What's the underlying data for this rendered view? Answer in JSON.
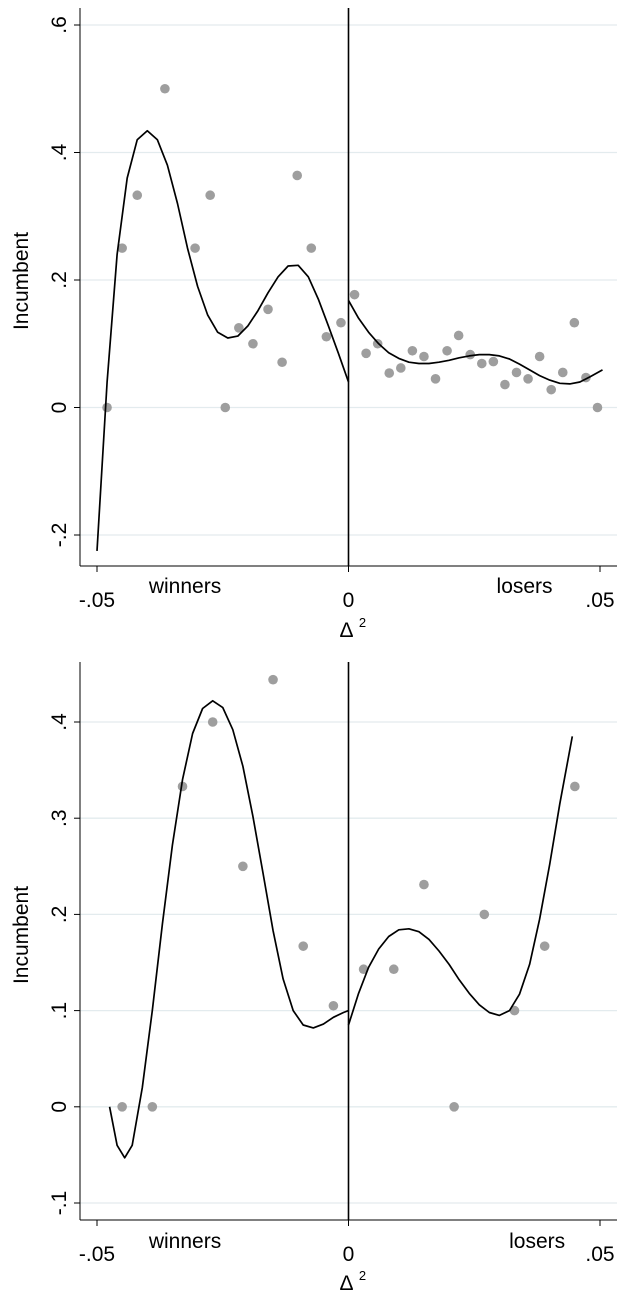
{
  "chart_data": [
    {
      "type": "scatter",
      "xlabel": "Δ",
      "xlabel_sup": "2",
      "ylabel": "Incumbent",
      "xlim": [
        -0.05,
        0.05
      ],
      "ylim": [
        -0.2,
        0.6
      ],
      "xticks": [
        {
          "value": -0.05,
          "label": "-.05"
        },
        {
          "value": 0,
          "label": "0"
        },
        {
          "value": 0.05,
          "label": ".05"
        }
      ],
      "yticks": [
        {
          "value": -0.2,
          "label": "-.2"
        },
        {
          "value": 0,
          "label": "0"
        },
        {
          "value": 0.2,
          "label": ".2"
        },
        {
          "value": 0.4,
          "label": ".4"
        },
        {
          "value": 0.6,
          "label": ".6"
        }
      ],
      "annotations": [
        {
          "text": "winners",
          "x": -0.0325
        },
        {
          "text": "losers",
          "x": 0.035
        }
      ],
      "cutoff": 0,
      "grid": true,
      "points": [
        [
          -0.048,
          0.0
        ],
        [
          -0.045,
          0.25
        ],
        [
          -0.042,
          0.333
        ],
        [
          -0.0365,
          0.5
        ],
        [
          -0.0305,
          0.25
        ],
        [
          -0.0275,
          0.333
        ],
        [
          -0.0245,
          0.0
        ],
        [
          -0.0218,
          0.125
        ],
        [
          -0.019,
          0.1
        ],
        [
          -0.016,
          0.154
        ],
        [
          -0.0132,
          0.071
        ],
        [
          -0.0102,
          0.364
        ],
        [
          -0.0074,
          0.25
        ],
        [
          -0.0044,
          0.111
        ],
        [
          -0.0015,
          0.133
        ],
        [
          0.0012,
          0.177
        ],
        [
          0.0035,
          0.085
        ],
        [
          0.0058,
          0.1
        ],
        [
          0.0081,
          0.054
        ],
        [
          0.0104,
          0.062
        ],
        [
          0.0127,
          0.089
        ],
        [
          0.015,
          0.08
        ],
        [
          0.0173,
          0.045
        ],
        [
          0.0196,
          0.089
        ],
        [
          0.0219,
          0.113
        ],
        [
          0.0242,
          0.083
        ],
        [
          0.0265,
          0.069
        ],
        [
          0.0288,
          0.072
        ],
        [
          0.0311,
          0.036
        ],
        [
          0.0334,
          0.055
        ],
        [
          0.0357,
          0.045
        ],
        [
          0.038,
          0.08
        ],
        [
          0.0403,
          0.028
        ],
        [
          0.0426,
          0.055
        ],
        [
          0.0449,
          0.133
        ],
        [
          0.0472,
          0.047
        ],
        [
          0.0495,
          0.0
        ]
      ],
      "fit_left": [
        [
          -0.05,
          -0.225
        ],
        [
          -0.048,
          0.04
        ],
        [
          -0.046,
          0.24
        ],
        [
          -0.044,
          0.36
        ],
        [
          -0.042,
          0.42
        ],
        [
          -0.04,
          0.434
        ],
        [
          -0.038,
          0.42
        ],
        [
          -0.036,
          0.38
        ],
        [
          -0.034,
          0.32
        ],
        [
          -0.032,
          0.25
        ],
        [
          -0.03,
          0.19
        ],
        [
          -0.028,
          0.145
        ],
        [
          -0.026,
          0.118
        ],
        [
          -0.024,
          0.109
        ],
        [
          -0.022,
          0.112
        ],
        [
          -0.02,
          0.128
        ],
        [
          -0.018,
          0.152
        ],
        [
          -0.016,
          0.18
        ],
        [
          -0.014,
          0.205
        ],
        [
          -0.012,
          0.222
        ],
        [
          -0.01,
          0.223
        ],
        [
          -0.008,
          0.205
        ],
        [
          -0.006,
          0.17
        ],
        [
          -0.004,
          0.128
        ],
        [
          -0.002,
          0.085
        ],
        [
          0.0,
          0.04
        ]
      ],
      "fit_right": [
        [
          0.0,
          0.168
        ],
        [
          0.002,
          0.14
        ],
        [
          0.004,
          0.118
        ],
        [
          0.006,
          0.1
        ],
        [
          0.008,
          0.086
        ],
        [
          0.01,
          0.077
        ],
        [
          0.012,
          0.071
        ],
        [
          0.014,
          0.069
        ],
        [
          0.016,
          0.069
        ],
        [
          0.018,
          0.071
        ],
        [
          0.02,
          0.074
        ],
        [
          0.022,
          0.078
        ],
        [
          0.024,
          0.081
        ],
        [
          0.026,
          0.083
        ],
        [
          0.028,
          0.083
        ],
        [
          0.03,
          0.081
        ],
        [
          0.032,
          0.076
        ],
        [
          0.034,
          0.068
        ],
        [
          0.036,
          0.059
        ],
        [
          0.038,
          0.05
        ],
        [
          0.04,
          0.043
        ],
        [
          0.042,
          0.038
        ],
        [
          0.044,
          0.037
        ],
        [
          0.046,
          0.04
        ],
        [
          0.048,
          0.048
        ],
        [
          0.0505,
          0.059
        ]
      ]
    },
    {
      "type": "scatter",
      "xlabel": "Δ",
      "xlabel_sup": "2",
      "ylabel": "Incumbent",
      "xlim": [
        -0.05,
        0.05
      ],
      "ylim": [
        -0.1,
        0.4
      ],
      "xticks": [
        {
          "value": -0.05,
          "label": "-.05"
        },
        {
          "value": 0,
          "label": "0"
        },
        {
          "value": 0.05,
          "label": ".05"
        }
      ],
      "yticks": [
        {
          "value": -0.1,
          "label": "-.1"
        },
        {
          "value": 0,
          "label": "0"
        },
        {
          "value": 0.1,
          "label": ".1"
        },
        {
          "value": 0.2,
          "label": ".2"
        },
        {
          "value": 0.3,
          "label": ".3"
        },
        {
          "value": 0.4,
          "label": ".4"
        }
      ],
      "annotations": [
        {
          "text": "winners",
          "x": -0.0325
        },
        {
          "text": "losers",
          "x": 0.0375
        }
      ],
      "cutoff": 0,
      "grid": true,
      "points": [
        [
          -0.045,
          0.0
        ],
        [
          -0.039,
          0.0
        ],
        [
          -0.033,
          0.333
        ],
        [
          -0.027,
          0.4
        ],
        [
          -0.021,
          0.25
        ],
        [
          -0.015,
          0.444
        ],
        [
          -0.009,
          0.167
        ],
        [
          -0.003,
          0.105
        ],
        [
          0.003,
          0.143
        ],
        [
          0.009,
          0.143
        ],
        [
          0.015,
          0.231
        ],
        [
          0.021,
          0.0
        ],
        [
          0.027,
          0.2
        ],
        [
          0.033,
          0.1
        ],
        [
          0.039,
          0.167
        ],
        [
          0.045,
          0.333
        ]
      ],
      "fit_left": [
        [
          -0.0475,
          0.0
        ],
        [
          -0.046,
          -0.04
        ],
        [
          -0.0445,
          -0.053
        ],
        [
          -0.043,
          -0.04
        ],
        [
          -0.041,
          0.02
        ],
        [
          -0.039,
          0.1
        ],
        [
          -0.037,
          0.19
        ],
        [
          -0.035,
          0.272
        ],
        [
          -0.033,
          0.34
        ],
        [
          -0.031,
          0.388
        ],
        [
          -0.029,
          0.414
        ],
        [
          -0.027,
          0.422
        ],
        [
          -0.025,
          0.415
        ],
        [
          -0.023,
          0.392
        ],
        [
          -0.021,
          0.354
        ],
        [
          -0.019,
          0.302
        ],
        [
          -0.017,
          0.243
        ],
        [
          -0.015,
          0.183
        ],
        [
          -0.013,
          0.133
        ],
        [
          -0.011,
          0.1
        ],
        [
          -0.009,
          0.085
        ],
        [
          -0.007,
          0.082
        ],
        [
          -0.005,
          0.086
        ],
        [
          -0.003,
          0.093
        ],
        [
          -0.001,
          0.098
        ],
        [
          0.0,
          0.1
        ]
      ],
      "fit_right": [
        [
          0.0,
          0.085
        ],
        [
          0.002,
          0.118
        ],
        [
          0.004,
          0.145
        ],
        [
          0.006,
          0.164
        ],
        [
          0.008,
          0.177
        ],
        [
          0.01,
          0.184
        ],
        [
          0.012,
          0.185
        ],
        [
          0.014,
          0.182
        ],
        [
          0.016,
          0.174
        ],
        [
          0.018,
          0.162
        ],
        [
          0.02,
          0.148
        ],
        [
          0.022,
          0.132
        ],
        [
          0.024,
          0.118
        ],
        [
          0.026,
          0.106
        ],
        [
          0.028,
          0.098
        ],
        [
          0.03,
          0.095
        ],
        [
          0.032,
          0.1
        ],
        [
          0.034,
          0.117
        ],
        [
          0.036,
          0.148
        ],
        [
          0.038,
          0.195
        ],
        [
          0.04,
          0.252
        ],
        [
          0.042,
          0.315
        ],
        [
          0.0445,
          0.385
        ]
      ]
    }
  ]
}
